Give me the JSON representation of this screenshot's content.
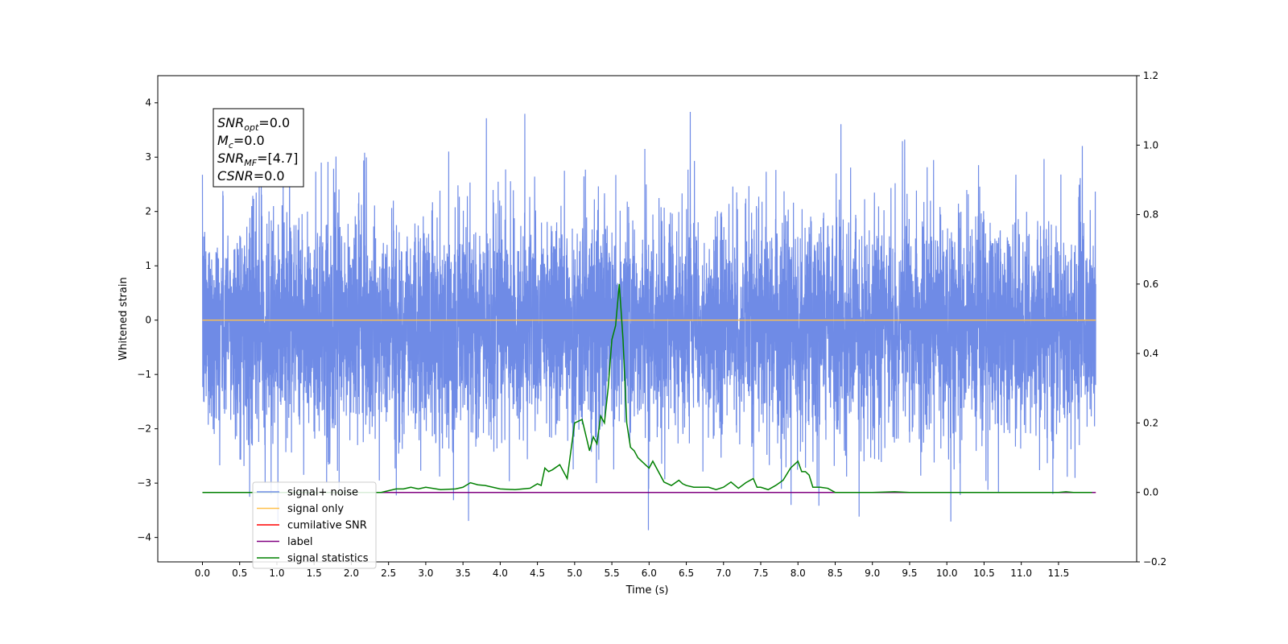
{
  "chart_data": {
    "type": "line",
    "title": "",
    "xlabel": "Time (s)",
    "ylabel": "Whitened strain",
    "xlim": [
      -0.6,
      12.55
    ],
    "ylim": [
      -4.45,
      4.5
    ],
    "y2lim": [
      -0.2,
      1.2
    ],
    "x_ticks": [
      "0.0",
      "0.5",
      "1.0",
      "1.5",
      "2.0",
      "2.5",
      "3.0",
      "3.5",
      "4.0",
      "4.5",
      "5.0",
      "5.5",
      "6.0",
      "6.5",
      "7.0",
      "7.5",
      "8.0",
      "8.5",
      "9.0",
      "9.5",
      "10.0",
      "10.5",
      "11.0",
      "11.5"
    ],
    "y_ticks": [
      "−4",
      "−3",
      "−2",
      "−1",
      "0",
      "1",
      "2",
      "3",
      "4"
    ],
    "y2_ticks": [
      "−0.2",
      "0.0",
      "0.2",
      "0.4",
      "0.6",
      "0.8",
      "1.0",
      "1.2"
    ],
    "grid": false,
    "legend_position": "lower-left",
    "colors": {
      "noise": "#6f8be6",
      "signal_only": "#ffc04a",
      "cumulative_snr": "#ff0000",
      "label": "#800080",
      "statistics": "#008000"
    },
    "stats_box": [
      {
        "sym": "SNR",
        "sub": "opt",
        "value": "=0.0"
      },
      {
        "sym": "M",
        "sub": "c",
        "value": "=0.0"
      },
      {
        "sym": "SNR",
        "sub": "MF",
        "value": "=[4.7]"
      },
      {
        "sym": "CSNR",
        "sub": "",
        "value": "=0.0"
      }
    ],
    "series": [
      {
        "name": "signal+ noise",
        "axis": "left",
        "x_range": [
          0.0,
          12.0
        ],
        "y_envelope": [
          -3.9,
          4.1
        ],
        "style": "dense noise"
      },
      {
        "name": "signal only",
        "axis": "left",
        "x": [
          0.0,
          12.0
        ],
        "y": [
          0.0,
          0.0
        ]
      },
      {
        "name": "cumilative SNR",
        "axis": "right",
        "x": [
          0.0,
          12.0
        ],
        "y": [
          0.0,
          0.0
        ]
      },
      {
        "name": "label",
        "axis": "right",
        "x": [
          0.0,
          12.0
        ],
        "y": [
          0.0,
          0.0
        ]
      },
      {
        "name": "signal statistics",
        "axis": "right",
        "x": [
          0.0,
          2.4,
          2.6,
          2.7,
          2.8,
          2.9,
          3.0,
          3.2,
          3.4,
          3.5,
          3.6,
          3.7,
          3.8,
          4.0,
          4.2,
          4.4,
          4.5,
          4.55,
          4.6,
          4.65,
          4.7,
          4.8,
          4.9,
          5.0,
          5.1,
          5.2,
          5.25,
          5.3,
          5.35,
          5.4,
          5.45,
          5.5,
          5.55,
          5.6,
          5.65,
          5.7,
          5.75,
          5.8,
          5.85,
          5.9,
          6.0,
          6.05,
          6.1,
          6.2,
          6.3,
          6.4,
          6.45,
          6.5,
          6.6,
          6.8,
          6.9,
          7.0,
          7.1,
          7.2,
          7.3,
          7.4,
          7.45,
          7.5,
          7.6,
          7.7,
          7.8,
          7.9,
          8.0,
          8.05,
          8.1,
          8.15,
          8.2,
          8.3,
          8.4,
          8.5,
          8.6,
          8.8,
          9.0,
          9.3,
          9.5,
          9.8,
          10.0,
          11.0,
          11.5,
          11.6,
          11.7,
          11.8,
          11.9,
          11.95
        ],
        "y": [
          0.0,
          0.0,
          0.01,
          0.01,
          0.015,
          0.01,
          0.015,
          0.008,
          0.01,
          0.015,
          0.028,
          0.022,
          0.02,
          0.01,
          0.008,
          0.012,
          0.025,
          0.02,
          0.07,
          0.06,
          0.065,
          0.08,
          0.04,
          0.2,
          0.21,
          0.12,
          0.16,
          0.14,
          0.22,
          0.2,
          0.3,
          0.44,
          0.48,
          0.6,
          0.44,
          0.2,
          0.13,
          0.12,
          0.1,
          0.09,
          0.07,
          0.09,
          0.07,
          0.03,
          0.02,
          0.035,
          0.025,
          0.02,
          0.015,
          0.015,
          0.008,
          0.015,
          0.03,
          0.012,
          0.028,
          0.04,
          0.015,
          0.015,
          0.008,
          0.02,
          0.035,
          0.07,
          0.09,
          0.06,
          0.06,
          0.05,
          0.015,
          0.015,
          0.012,
          0.0,
          0.0,
          0.0,
          0.0,
          0.002,
          0.0,
          0.0,
          0.0,
          0.0,
          0.0,
          0.002,
          0.0,
          0.0,
          0.0,
          0.0
        ]
      }
    ]
  }
}
